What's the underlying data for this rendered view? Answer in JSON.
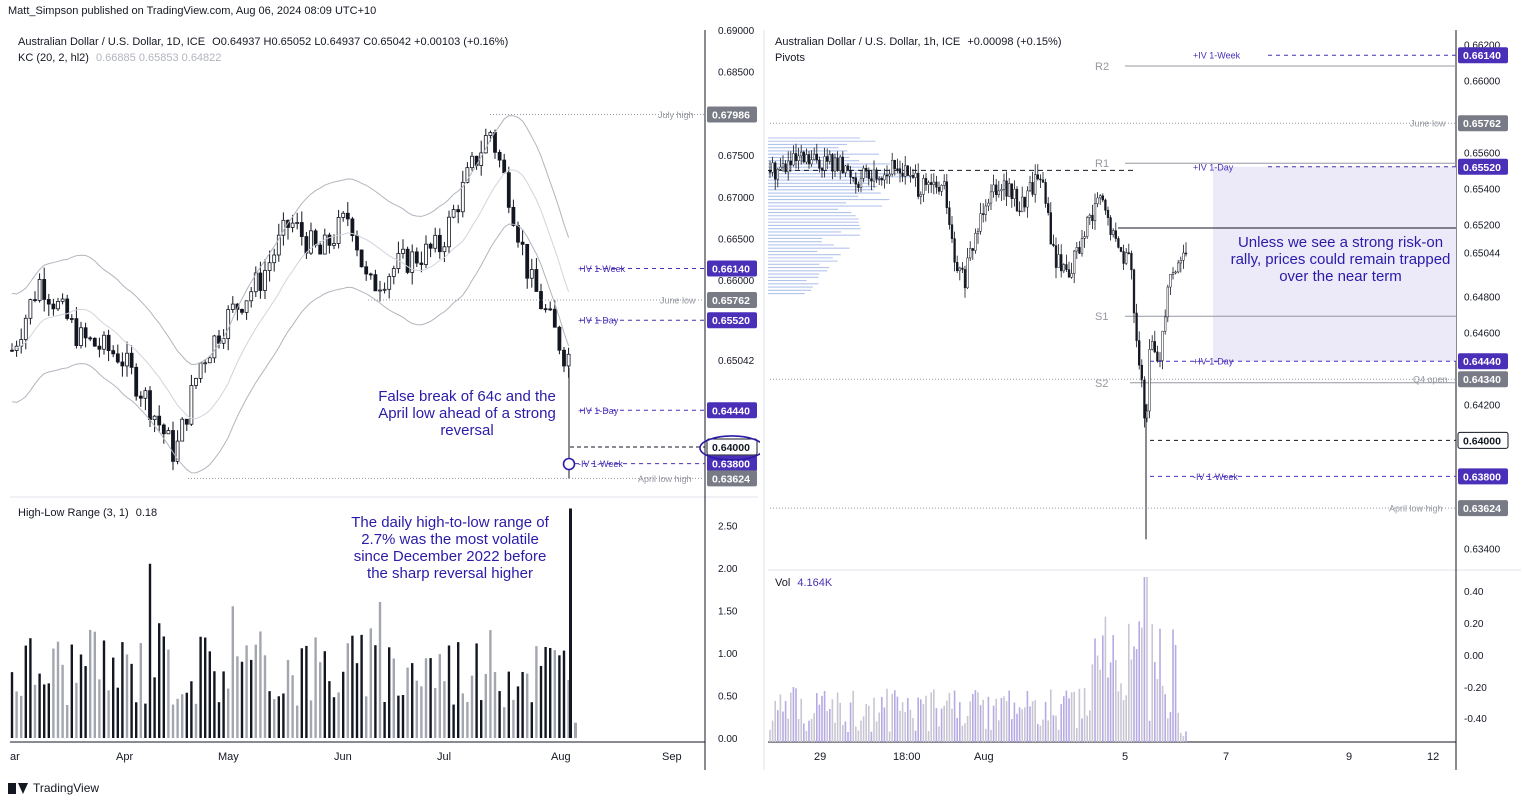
{
  "header": {
    "publisher": "Matt_Simpson published on TradingView.com, Aug 06, 2024 08:09 UTC+10"
  },
  "footer": {
    "brand": "TradingView"
  },
  "left_chart": {
    "title": "Australian Dollar / U.S. Dollar, 1D, ICE",
    "ohlc": {
      "o": "O0.64937",
      "h": "H0.65052",
      "l": "L0.64937",
      "c": "C0.65042",
      "chg": "+0.00103 (+0.16%)"
    },
    "kc_label": "KC (20, 2, hl2)",
    "kc_values": [
      "0.66885",
      "0.65853",
      "0.64822"
    ],
    "annotation": "False break of 64c and the April low ahead of a strong reversal",
    "range_label": "High-Low Range (3, 1)",
    "range_value": "0.18",
    "range_annotation": "The daily high-to-low range of 2.7% was the most volatile since December 2022 before the sharp reversal higher"
  },
  "right_chart": {
    "title": "Australian Dollar / U.S. Dollar, 1h, ICE",
    "chg": "+0.00098 (+0.15%)",
    "pivots_label": "Pivots",
    "annotation": "Unless we see a strong risk-on rally, prices could remain trapped over the near term",
    "vol_label": "Vol",
    "vol_value": "4.164K"
  },
  "chart_data": [
    {
      "type": "candlestick",
      "timeframe": "1D",
      "xlabels": [
        "ar",
        "Apr",
        "May",
        "Jun",
        "Jul",
        "Aug",
        "Sep"
      ],
      "ylim": [
        0.634,
        0.69
      ],
      "yticks": [
        "0.69000",
        "0.68500",
        "0.67500",
        "0.67000",
        "0.66500",
        "0.66000",
        "0.65042"
      ],
      "levels": [
        {
          "label": "July high",
          "price": 0.67986,
          "value": "0.67986",
          "style": "grey"
        },
        {
          "label": "+IV 1-Week",
          "price": 0.6614,
          "value": "0.66140",
          "style": "purple"
        },
        {
          "label": "June low",
          "price": 0.65762,
          "value": "0.65762",
          "style": "grey"
        },
        {
          "label": "+IV 1-Day",
          "price": 0.6552,
          "value": "0.65520",
          "style": "purple"
        },
        {
          "label": "+IV 1-Day",
          "price": 0.6444,
          "value": "0.64440",
          "style": "purple"
        },
        {
          "label": "",
          "price": 0.64,
          "value": "0.64000",
          "style": "black"
        },
        {
          "label": "-IV 1-Week",
          "price": 0.638,
          "value": "0.63800",
          "style": "purple"
        },
        {
          "label": "April low high",
          "price": 0.63624,
          "value": "0.63624",
          "style": "grey"
        }
      ],
      "last_price": 0.65042
    },
    {
      "type": "bar",
      "name": "High-Low Range (3, 1)",
      "ylim": [
        0,
        2.8
      ],
      "yticks": [
        "2.50",
        "2.00",
        "1.50",
        "1.00",
        "0.50",
        "0.00"
      ],
      "peak_value": 2.7,
      "last_value": 0.18
    },
    {
      "type": "candlestick",
      "timeframe": "1h",
      "xlabels": [
        "29",
        "18:00",
        "Aug",
        "5",
        "7",
        "9",
        "12"
      ],
      "ylim": [
        0.6328,
        0.6628
      ],
      "yticks": [
        "0.66200",
        "0.66000",
        "0.65600",
        "0.65400",
        "0.65200",
        "0.65044",
        "0.64800",
        "0.64600",
        "0.64200",
        "0.63400"
      ],
      "pivots": [
        {
          "label": "R2",
          "price": 0.6608
        },
        {
          "label": "R1",
          "price": 0.6554
        },
        {
          "label": "S1",
          "price": 0.6469
        },
        {
          "label": "S2",
          "price": 0.6432
        }
      ],
      "levels": [
        {
          "label": "+IV 1-Week",
          "price": 0.6614,
          "value": "0.66140",
          "style": "purple"
        },
        {
          "label": "June low",
          "price": 0.65762,
          "value": "0.65762",
          "style": "grey"
        },
        {
          "label": "+IV 1-Day",
          "price": 0.6552,
          "value": "0.65520",
          "style": "purple"
        },
        {
          "label": "+IV 1-Day",
          "price": 0.6444,
          "value": "0.64440",
          "style": "purple"
        },
        {
          "label": "Q4 open",
          "price": 0.6434,
          "value": "0.64340",
          "style": "grey"
        },
        {
          "label": "",
          "price": 0.64,
          "value": "0.64000",
          "style": "black"
        },
        {
          "label": "-IV 1-Week",
          "price": 0.638,
          "value": "0.63800",
          "style": "purple"
        },
        {
          "label": "April low high",
          "price": 0.63624,
          "value": "0.63624",
          "style": "grey"
        }
      ],
      "last_price": 0.65044
    },
    {
      "type": "bar",
      "name": "Vol",
      "yticks": [
        "0.40",
        "0.20",
        "0.00",
        "-0.20",
        "-0.40"
      ],
      "last_value": "4.164K"
    }
  ],
  "colors": {
    "purple": "#4a2fb8",
    "grey": "#9598a1",
    "accent_line": "#131722",
    "shade": "#ece9f8",
    "annotation": "#2a1ba8"
  }
}
